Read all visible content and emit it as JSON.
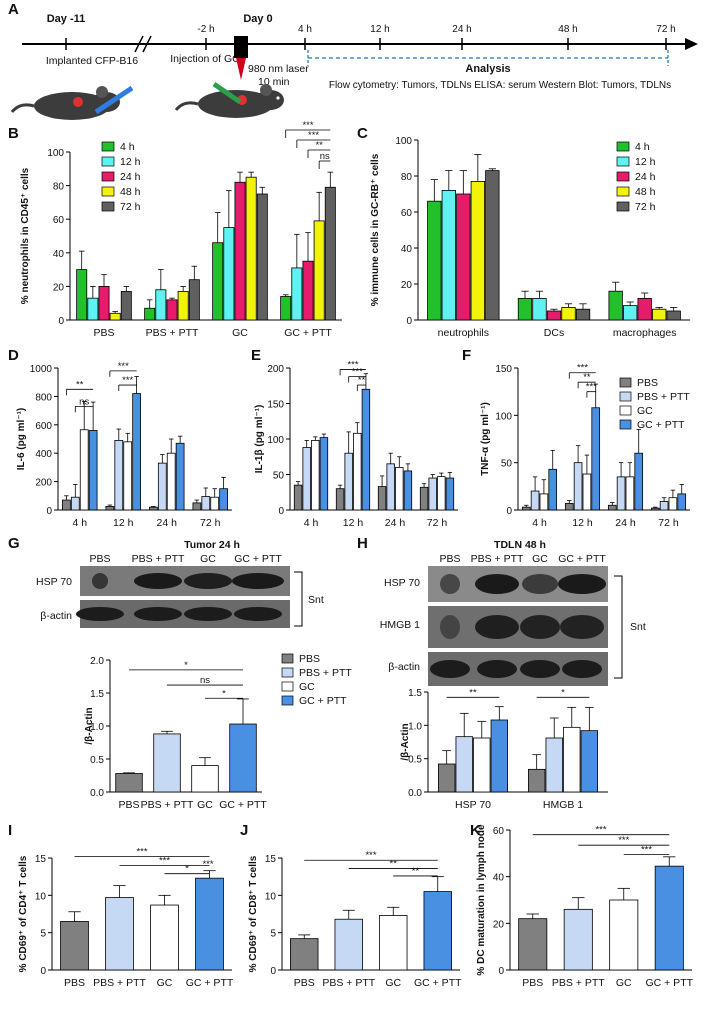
{
  "figure": {
    "panel_labels": [
      "A",
      "B",
      "C",
      "D",
      "E",
      "F",
      "G",
      "H",
      "I",
      "J",
      "K"
    ],
    "timeline": {
      "days": [
        "Day -11",
        "Day 0"
      ],
      "ticks": [
        "-2 h",
        "4 h",
        "12 h",
        "24 h",
        "48 h",
        "72 h"
      ],
      "implant_text": "Implanted CFP-B16",
      "injection_text": "Injection of GC",
      "laser_text_1": "980 nm laser",
      "laser_text_2": "10 min",
      "analysis_title": "Analysis",
      "analysis_text": "Flow cytometry: Tumors, TDLNs  ELISA: serum  Western Blot: Tumors, TDLNs"
    },
    "blot_G": {
      "title": "Tumor 24 h",
      "lanes": [
        "PBS",
        "PBS + PTT",
        "GC",
        "GC + PTT"
      ],
      "rows": [
        "HSP 70",
        "β-actin"
      ],
      "snt": "Snt"
    },
    "blot_H": {
      "title": "TDLN 48 h",
      "lanes": [
        "PBS",
        "PBS + PTT",
        "GC",
        "GC + PTT"
      ],
      "rows": [
        "HSP 70",
        "HMGB 1",
        "β-actin"
      ],
      "snt": "Snt"
    },
    "colors": {
      "t4h": "#22c02a",
      "t12h": "#5ff2f2",
      "t24h": "#e51c6c",
      "t48h": "#f2f20a",
      "t72h": "#606060",
      "pbs": "#808080",
      "pbs_ptt": "#c5d9f5",
      "gc": "#ffffff",
      "gc_ptt": "#4a90e2"
    }
  },
  "chart_data": [
    {
      "id": "B",
      "type": "bar",
      "ylabel": "% neutrophils in CD45⁺ cells",
      "ylim": [
        0,
        100
      ],
      "yticks": [
        0,
        20,
        40,
        60,
        80,
        100
      ],
      "categories": [
        "PBS",
        "PBS + PTT",
        "GC",
        "GC + PTT"
      ],
      "series": [
        {
          "name": "4 h",
          "color_key": "t4h",
          "values": [
            30,
            7,
            46,
            14
          ],
          "errors": [
            11,
            5,
            18,
            1
          ]
        },
        {
          "name": "12 h",
          "color_key": "t12h",
          "values": [
            13,
            18,
            55,
            31
          ],
          "errors": [
            7,
            12,
            22,
            20
          ]
        },
        {
          "name": "24 h",
          "color_key": "t24h",
          "values": [
            20,
            12,
            82,
            35
          ],
          "errors": [
            7,
            1,
            6,
            17
          ]
        },
        {
          "name": "48 h",
          "color_key": "t48h",
          "values": [
            4,
            17,
            85,
            59
          ],
          "errors": [
            1,
            3,
            3,
            17
          ]
        },
        {
          "name": "72 h",
          "color_key": "t72h",
          "values": [
            17,
            24,
            75,
            79
          ],
          "errors": [
            3,
            8,
            4,
            9
          ]
        }
      ],
      "significance": [
        "***",
        "***",
        "**",
        "ns"
      ]
    },
    {
      "id": "C",
      "type": "bar",
      "ylabel": "% immune cells in GC-RB⁺ cells",
      "ylim": [
        0,
        100
      ],
      "yticks": [
        0,
        20,
        40,
        60,
        80,
        100
      ],
      "categories": [
        "neutrophils",
        "DCs",
        "macrophages"
      ],
      "series": [
        {
          "name": "4 h",
          "color_key": "t4h",
          "values": [
            66,
            12,
            16
          ],
          "errors": [
            12,
            4,
            5
          ]
        },
        {
          "name": "12 h",
          "color_key": "t12h",
          "values": [
            72,
            12,
            8
          ],
          "errors": [
            11,
            4,
            2
          ]
        },
        {
          "name": "24 h",
          "color_key": "t24h",
          "values": [
            70,
            5,
            12
          ],
          "errors": [
            13,
            1,
            3
          ]
        },
        {
          "name": "48 h",
          "color_key": "t48h",
          "values": [
            77,
            7,
            6
          ],
          "errors": [
            15,
            2,
            1
          ]
        },
        {
          "name": "72 h",
          "color_key": "t72h",
          "values": [
            83,
            6,
            5
          ],
          "errors": [
            1,
            3,
            2
          ]
        }
      ]
    },
    {
      "id": "D",
      "type": "bar",
      "ylabel": "IL-6 (pg ml⁻¹)",
      "ylim": [
        0,
        1000
      ],
      "yticks": [
        0,
        200,
        400,
        600,
        800,
        1000
      ],
      "categories": [
        "4 h",
        "12 h",
        "24 h",
        "72 h"
      ],
      "series": [
        {
          "name": "PBS",
          "color_key": "pbs",
          "values": [
            70,
            25,
            20,
            50
          ],
          "errors": [
            30,
            10,
            5,
            20
          ]
        },
        {
          "name": "PBS + PTT",
          "color_key": "pbs_ptt",
          "values": [
            90,
            490,
            330,
            95
          ],
          "errors": [
            90,
            80,
            60,
            60
          ]
        },
        {
          "name": "GC",
          "color_key": "gc",
          "values": [
            565,
            480,
            400,
            90
          ],
          "errors": [
            200,
            60,
            100,
            60
          ]
        },
        {
          "name": "GC + PTT",
          "color_key": "gc_ptt",
          "values": [
            560,
            820,
            470,
            150
          ],
          "errors": [
            200,
            120,
            50,
            80
          ]
        }
      ],
      "significance": [
        "**",
        "ns",
        "***",
        "***"
      ]
    },
    {
      "id": "E",
      "type": "bar",
      "ylabel": "IL-1β (pg ml⁻¹)",
      "ylim": [
        0,
        200
      ],
      "yticks": [
        0,
        50,
        100,
        150,
        200
      ],
      "categories": [
        "4 h",
        "12 h",
        "24 h",
        "72 h"
      ],
      "series": [
        {
          "name": "PBS",
          "color_key": "pbs",
          "values": [
            35,
            30,
            33,
            32
          ],
          "errors": [
            5,
            5,
            15,
            5
          ]
        },
        {
          "name": "PBS + PTT",
          "color_key": "pbs_ptt",
          "values": [
            88,
            80,
            65,
            45
          ],
          "errors": [
            10,
            30,
            15,
            5
          ]
        },
        {
          "name": "GC",
          "color_key": "gc",
          "values": [
            98,
            108,
            60,
            47
          ],
          "errors": [
            5,
            15,
            15,
            5
          ]
        },
        {
          "name": "GC + PTT",
          "color_key": "gc_ptt",
          "values": [
            102,
            170,
            55,
            45
          ],
          "errors": [
            5,
            22,
            10,
            8
          ]
        }
      ],
      "significance": [
        "***",
        "***",
        "**"
      ]
    },
    {
      "id": "F",
      "type": "bar",
      "ylabel": "TNF-α (pg ml⁻¹)",
      "ylim": [
        0,
        150
      ],
      "yticks": [
        0,
        50,
        100,
        150
      ],
      "categories": [
        "4 h",
        "12 h",
        "24 h",
        "72 h"
      ],
      "series": [
        {
          "name": "PBS",
          "color_key": "pbs",
          "values": [
            3,
            7,
            5,
            2
          ],
          "errors": [
            2,
            3,
            3,
            1
          ]
        },
        {
          "name": "PBS + PTT",
          "color_key": "pbs_ptt",
          "values": [
            20,
            50,
            35,
            9
          ],
          "errors": [
            15,
            18,
            15,
            4
          ]
        },
        {
          "name": "GC",
          "color_key": "gc",
          "values": [
            17,
            38,
            35,
            13
          ],
          "errors": [
            15,
            20,
            15,
            8
          ]
        },
        {
          "name": "GC + PTT",
          "color_key": "gc_ptt",
          "values": [
            43,
            108,
            60,
            17
          ],
          "errors": [
            20,
            25,
            25,
            10
          ]
        }
      ],
      "significance": [
        "***",
        "**",
        "***"
      ]
    },
    {
      "id": "G-quant",
      "type": "bar",
      "ylabel": "/β-Actin",
      "ylim": [
        0,
        2.0
      ],
      "yticks": [
        0.0,
        0.5,
        1.0,
        1.5,
        2.0
      ],
      "categories": [
        "PBS",
        "PBS + PTT",
        "GC",
        "GC + PTT"
      ],
      "values": [
        0.28,
        0.88,
        0.4,
        1.03
      ],
      "errors": [
        0.01,
        0.04,
        0.12,
        0.38
      ],
      "color_keys": [
        "pbs",
        "pbs_ptt",
        "gc",
        "gc_ptt"
      ],
      "legend": [
        "PBS",
        "PBS + PTT",
        "GC",
        "GC + PTT"
      ],
      "significance": [
        "*",
        "ns",
        "*"
      ]
    },
    {
      "id": "H-quant",
      "type": "bar",
      "ylabel": "/β-Actin",
      "ylim": [
        0,
        1.5
      ],
      "yticks": [
        0.0,
        0.5,
        1.0,
        1.5
      ],
      "categories": [
        "HSP 70",
        "HMGB 1"
      ],
      "series": [
        {
          "name": "PBS",
          "color_key": "pbs",
          "values": [
            0.42,
            0.34
          ],
          "errors": [
            0.2,
            0.22
          ]
        },
        {
          "name": "PBS + PTT",
          "color_key": "pbs_ptt",
          "values": [
            0.83,
            0.81
          ],
          "errors": [
            0.35,
            0.3
          ]
        },
        {
          "name": "GC",
          "color_key": "gc",
          "values": [
            0.81,
            0.97
          ],
          "errors": [
            0.25,
            0.3
          ]
        },
        {
          "name": "GC + PTT",
          "color_key": "gc_ptt",
          "values": [
            1.08,
            0.92
          ],
          "errors": [
            0.2,
            0.35
          ]
        }
      ],
      "significance": [
        "**",
        "*"
      ]
    },
    {
      "id": "I",
      "type": "bar",
      "ylabel": "% CD69⁺ of CD4⁺ T cells",
      "ylim": [
        0,
        15
      ],
      "yticks": [
        0,
        5,
        10,
        15
      ],
      "categories": [
        "PBS",
        "PBS + PTT",
        "GC",
        "GC + PTT"
      ],
      "values": [
        6.5,
        9.7,
        8.7,
        12.3
      ],
      "errors": [
        1.3,
        1.6,
        1.3,
        1.0
      ],
      "color_keys": [
        "pbs",
        "pbs_ptt",
        "gc",
        "gc_ptt"
      ],
      "significance": [
        "***",
        "***",
        "*",
        "***"
      ]
    },
    {
      "id": "J",
      "type": "bar",
      "ylabel": "% CD69⁺ of CD8⁺ T cells",
      "ylim": [
        0,
        15
      ],
      "yticks": [
        0,
        5,
        10,
        15
      ],
      "categories": [
        "PBS",
        "PBS + PTT",
        "GC",
        "GC + PTT"
      ],
      "values": [
        4.2,
        6.8,
        7.3,
        10.5
      ],
      "errors": [
        0.5,
        1.2,
        1.1,
        2.0
      ],
      "color_keys": [
        "pbs",
        "pbs_ptt",
        "gc",
        "gc_ptt"
      ],
      "significance": [
        "***",
        "**",
        "**"
      ]
    },
    {
      "id": "K",
      "type": "bar",
      "ylabel": "% DC maturation in lymph node",
      "ylim": [
        0,
        60
      ],
      "yticks": [
        0,
        20,
        40,
        60
      ],
      "categories": [
        "PBS",
        "PBS + PTT",
        "GC",
        "GC + PTT"
      ],
      "values": [
        22,
        26,
        30,
        44.5
      ],
      "errors": [
        2,
        5,
        5,
        4
      ],
      "color_keys": [
        "pbs",
        "pbs_ptt",
        "gc",
        "gc_ptt"
      ],
      "significance": [
        "***",
        "***",
        "***"
      ]
    }
  ]
}
